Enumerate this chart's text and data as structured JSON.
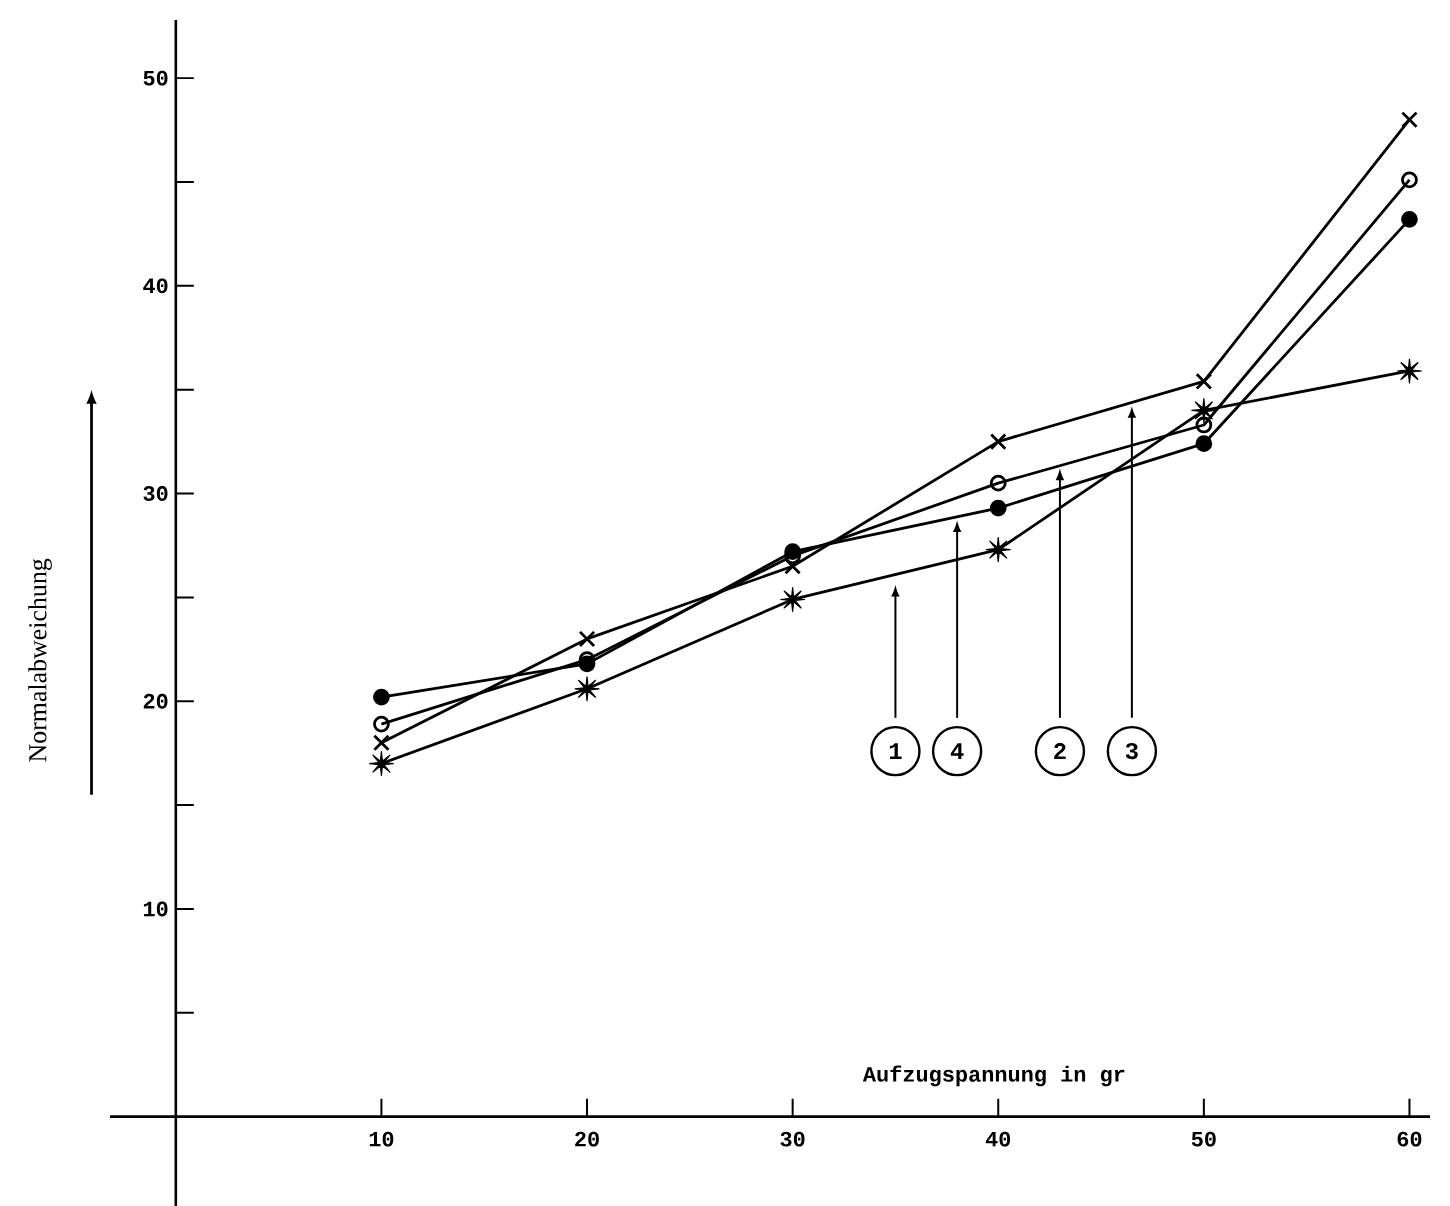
{
  "chart_data": {
    "type": "line",
    "xlabel": "Aufzugspannung in gr",
    "ylabel": "Normalabweichung",
    "x": [
      10,
      20,
      30,
      40,
      50,
      60
    ],
    "series": [
      {
        "color": "#000000",
        "marker": "star",
        "values": [
          17,
          20.6,
          24.9,
          27.3,
          34,
          35.9
        ]
      },
      {
        "color": "#000000",
        "marker": "circle",
        "values": [
          20.2,
          21.8,
          27.2,
          29.3,
          32.4,
          43.2
        ]
      },
      {
        "color": "#000000",
        "marker": "circle_open",
        "values": [
          18.9,
          22,
          27,
          30.5,
          33.3,
          45.1
        ]
      },
      {
        "color": "#000000",
        "marker": "cross",
        "values": [
          18,
          23,
          26.5,
          32.5,
          35.4,
          48
        ]
      }
    ],
    "xlim": [
      -3.2,
      61
    ],
    "ylim": [
      -4.3,
      52.8
    ],
    "xticks": [
      10,
      20,
      30,
      40,
      50,
      60
    ],
    "yticks": [
      {
        "value": 5,
        "label": null
      },
      10,
      {
        "value": 15,
        "label": null
      },
      20,
      {
        "value": 25,
        "label": null
      },
      30,
      {
        "value": 35,
        "label": null
      },
      40,
      {
        "value": 45,
        "label": null
      },
      50
    ],
    "annotations": [
      {
        "text": "1",
        "x": 35,
        "y": 25.6
      },
      {
        "text": "4",
        "x": 38,
        "y": 28.7
      },
      {
        "text": "2",
        "x": 43,
        "y": 31.2
      },
      {
        "text": "3",
        "x": 46.5,
        "y": 34.2
      }
    ],
    "grid": false
  }
}
